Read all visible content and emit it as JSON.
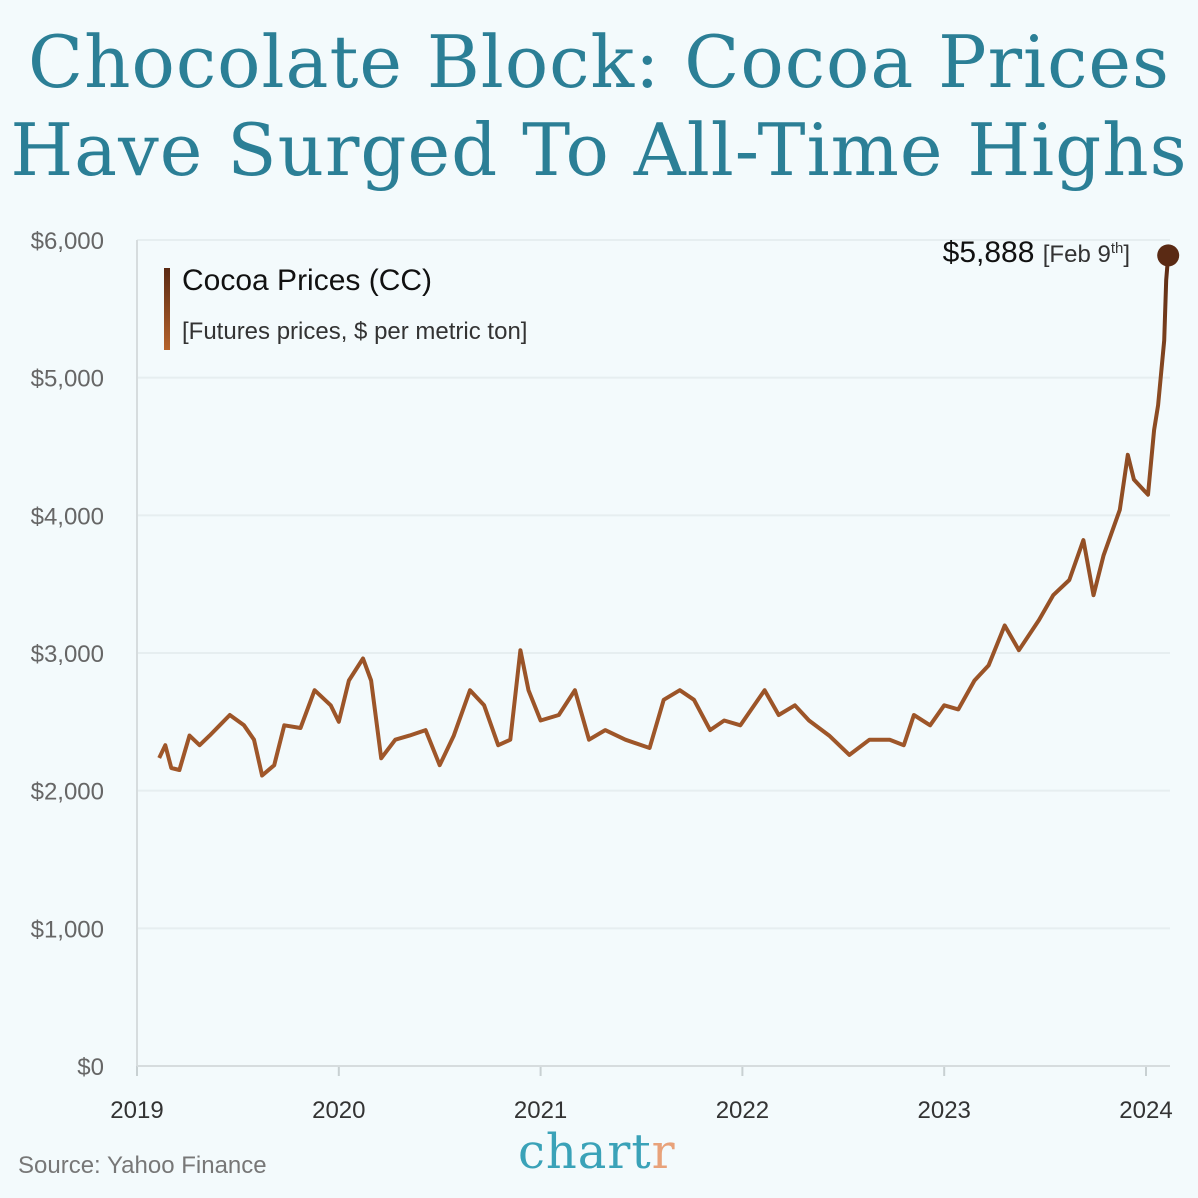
{
  "title_line1": "Chocolate Block: Cocoa Prices",
  "title_line2": "Have Surged To All-Time Highs",
  "legend": {
    "title": "Cocoa Prices (CC)",
    "subtitle": "[Futures prices, $ per metric ton]"
  },
  "annotation": {
    "value": "$5,888",
    "date_open": "[Feb 9",
    "date_sup": "th",
    "date_close": "]"
  },
  "source": "Source: Yahoo Finance",
  "logo": {
    "main": "chart",
    "accent": "r"
  },
  "colors": {
    "line": "#a0572a",
    "line_end": "#5a2a14",
    "title": "#2b7f96",
    "background": "#f3fafc"
  },
  "chart_data": {
    "type": "line",
    "title": "Chocolate Block: Cocoa Prices Have Surged To All-Time Highs",
    "xlabel": "",
    "ylabel": "",
    "xlim": [
      2019,
      2024.15
    ],
    "ylim": [
      0,
      6000
    ],
    "grid": true,
    "legend_placement": "top-left",
    "x_ticks": [
      2019,
      2020,
      2021,
      2022,
      2023,
      2024
    ],
    "x_tick_labels": [
      "2019",
      "2020",
      "2021",
      "2022",
      "2023",
      "2024"
    ],
    "y_ticks": [
      0,
      1000,
      2000,
      3000,
      4000,
      5000,
      6000
    ],
    "y_tick_labels": [
      "$0",
      "$1,000",
      "$2,000",
      "$3,000",
      "$4,000",
      "$5,000",
      "$6,000"
    ],
    "series": [
      {
        "name": "Cocoa Prices (CC)",
        "x": [
          2019.11,
          2019.14,
          2019.17,
          2019.21,
          2019.26,
          2019.31,
          2019.36,
          2019.41,
          2019.46,
          2019.53,
          2019.58,
          2019.62,
          2019.68,
          2019.73,
          2019.81,
          2019.88,
          2019.96,
          2020.0,
          2020.05,
          2020.12,
          2020.16,
          2020.21,
          2020.28,
          2020.35,
          2020.43,
          2020.5,
          2020.57,
          2020.65,
          2020.72,
          2020.79,
          2020.85,
          2020.9,
          2020.94,
          2021.0,
          2021.09,
          2021.17,
          2021.24,
          2021.32,
          2021.42,
          2021.54,
          2021.61,
          2021.69,
          2021.76,
          2021.84,
          2021.91,
          2021.99,
          2022.11,
          2022.18,
          2022.26,
          2022.33,
          2022.43,
          2022.53,
          2022.63,
          2022.73,
          2022.8,
          2022.85,
          2022.93,
          2023.0,
          2023.07,
          2023.15,
          2023.22,
          2023.3,
          2023.37,
          2023.47,
          2023.54,
          2023.62,
          2023.69,
          2023.74,
          2023.79,
          2023.87,
          2023.91,
          2023.94,
          2024.01,
          2024.04,
          2024.06,
          2024.09,
          2024.1,
          2024.11
        ],
        "y": [
          2237,
          2330,
          2165,
          2150,
          2400,
          2330,
          2400,
          2475,
          2550,
          2475,
          2370,
          2110,
          2185,
          2475,
          2455,
          2730,
          2620,
          2500,
          2800,
          2960,
          2800,
          2235,
          2370,
          2400,
          2440,
          2185,
          2400,
          2730,
          2620,
          2330,
          2370,
          3020,
          2730,
          2510,
          2550,
          2730,
          2370,
          2440,
          2370,
          2310,
          2660,
          2730,
          2660,
          2440,
          2510,
          2475,
          2730,
          2550,
          2620,
          2510,
          2400,
          2260,
          2370,
          2370,
          2330,
          2550,
          2475,
          2620,
          2590,
          2800,
          2910,
          3200,
          3020,
          3240,
          3420,
          3530,
          3820,
          3420,
          3710,
          4040,
          4440,
          4260,
          4150,
          4620,
          4800,
          5270,
          5710,
          5888
        ]
      }
    ],
    "annotations": [
      {
        "x": 2024.11,
        "y": 5888,
        "text": "$5,888 [Feb 9th]"
      }
    ]
  }
}
